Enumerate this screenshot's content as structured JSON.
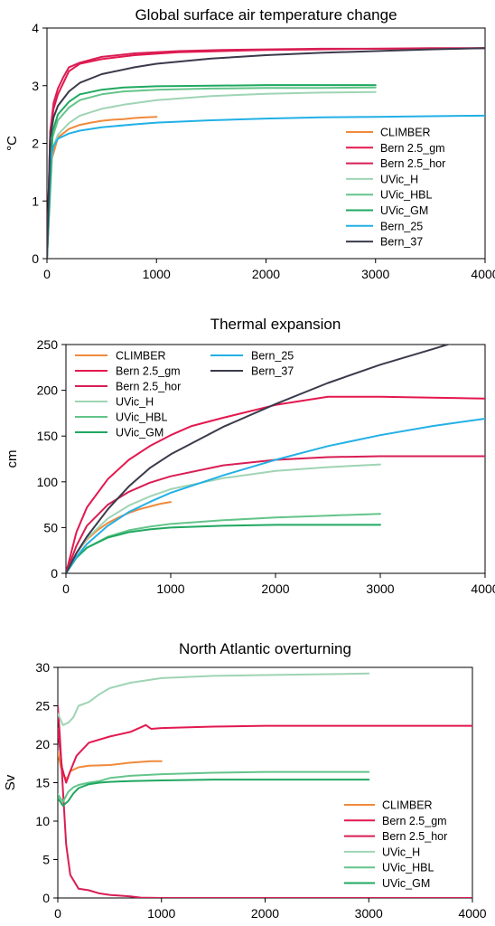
{
  "colors": {
    "CLIMBER": "#f08a3c",
    "Bern 2.5_gm": "#e3184f",
    "Bern 2.5_hor": "#d81e54",
    "UVic_H": "#9fd4b4",
    "UVic_HBL": "#64c48a",
    "UVic_GM": "#1fa860",
    "Bern_25": "#22b0e6",
    "Bern_37": "#3a3a4c"
  },
  "chart_data": [
    {
      "type": "line",
      "title": "Global surface air temperature change",
      "xlabel": "",
      "ylabel": "°C",
      "xlim": [
        0,
        4000
      ],
      "ylim": [
        0,
        4
      ],
      "xticks": [
        "0",
        "1000",
        "2000",
        "3000",
        "4000"
      ],
      "yticks": [
        "0",
        "1",
        "2",
        "3",
        "4"
      ],
      "legend_position": "lower-right",
      "legend": [
        "CLIMBER",
        "Bern 2.5_gm",
        "Bern 2.5_hor",
        "UVic_H",
        "UVic_HBL",
        "UVic_GM",
        "Bern_25",
        "Bern_37"
      ],
      "series": [
        {
          "name": "CLIMBER",
          "x": [
            0,
            40,
            100,
            200,
            300,
            400,
            500,
            600,
            700,
            800,
            900,
            1000
          ],
          "y": [
            0,
            1.7,
            2.1,
            2.25,
            2.32,
            2.36,
            2.39,
            2.41,
            2.42,
            2.44,
            2.45,
            2.46
          ]
        },
        {
          "name": "Bern 2.5_gm",
          "x": [
            0,
            30,
            60,
            100,
            150,
            200,
            300,
            500,
            800,
            1200,
            1600,
            2000,
            2500,
            3000,
            3500,
            4000
          ],
          "y": [
            0,
            2.2,
            2.6,
            2.85,
            3.05,
            3.25,
            3.38,
            3.46,
            3.53,
            3.58,
            3.6,
            3.62,
            3.63,
            3.64,
            3.64,
            3.65
          ]
        },
        {
          "name": "Bern 2.5_hor",
          "x": [
            0,
            30,
            60,
            100,
            150,
            200,
            300,
            500,
            800,
            1200,
            1600,
            2000,
            2500,
            3000,
            3500,
            4000
          ],
          "y": [
            0,
            2.2,
            2.7,
            2.95,
            3.15,
            3.32,
            3.4,
            3.5,
            3.56,
            3.6,
            3.62,
            3.63,
            3.64,
            3.64,
            3.65,
            3.65
          ]
        },
        {
          "name": "UVic_H",
          "x": [
            0,
            50,
            100,
            200,
            300,
            500,
            700,
            1000,
            1500,
            2000,
            2500,
            3000
          ],
          "y": [
            0,
            1.9,
            2.15,
            2.35,
            2.48,
            2.6,
            2.67,
            2.75,
            2.82,
            2.86,
            2.88,
            2.89
          ]
        },
        {
          "name": "UVic_HBL",
          "x": [
            0,
            50,
            100,
            200,
            300,
            500,
            700,
            1000,
            1500,
            2000,
            2500,
            3000
          ],
          "y": [
            0,
            2.1,
            2.4,
            2.62,
            2.75,
            2.85,
            2.9,
            2.93,
            2.95,
            2.96,
            2.96,
            2.97
          ]
        },
        {
          "name": "UVic_GM",
          "x": [
            0,
            50,
            100,
            200,
            300,
            500,
            700,
            1000,
            1500,
            2000,
            2500,
            3000
          ],
          "y": [
            0,
            2.2,
            2.5,
            2.72,
            2.85,
            2.93,
            2.97,
            2.99,
            3.0,
            3.01,
            3.01,
            3.01
          ]
        },
        {
          "name": "Bern_25",
          "x": [
            0,
            30,
            60,
            100,
            200,
            300,
            500,
            800,
            1000,
            1500,
            2000,
            2500,
            3000,
            3500,
            4000
          ],
          "y": [
            0,
            1.7,
            1.95,
            2.08,
            2.17,
            2.22,
            2.28,
            2.33,
            2.36,
            2.4,
            2.43,
            2.45,
            2.46,
            2.47,
            2.48
          ]
        },
        {
          "name": "Bern_37",
          "x": [
            0,
            30,
            60,
            100,
            200,
            300,
            500,
            800,
            1000,
            1500,
            2000,
            2500,
            3000,
            3500,
            4000
          ],
          "y": [
            0,
            2.1,
            2.45,
            2.65,
            2.9,
            3.05,
            3.2,
            3.32,
            3.38,
            3.47,
            3.53,
            3.57,
            3.6,
            3.63,
            3.65
          ]
        }
      ]
    },
    {
      "type": "line",
      "title": "Thermal expansion",
      "xlabel": "",
      "ylabel": "cm",
      "xlim": [
        0,
        4000
      ],
      "ylim": [
        0,
        250
      ],
      "xticks": [
        "0",
        "1000",
        "2000",
        "3000",
        "4000"
      ],
      "yticks": [
        "0",
        "50",
        "100",
        "150",
        "200",
        "250"
      ],
      "legend_position": "top-left",
      "legend": [
        "CLIMBER",
        "Bern 2.5_gm",
        "Bern 2.5_hor",
        "UVic_H",
        "UVic_HBL",
        "UVic_GM",
        "Bern_25",
        "Bern_37"
      ],
      "series": [
        {
          "name": "CLIMBER",
          "x": [
            0,
            100,
            200,
            300,
            400,
            500,
            600,
            700,
            800,
            900,
            1000
          ],
          "y": [
            0,
            22,
            37,
            47,
            55,
            61,
            66,
            70,
            73,
            76,
            78
          ]
        },
        {
          "name": "Bern 2.5_gm",
          "x": [
            0,
            100,
            200,
            400,
            600,
            800,
            1000,
            1200,
            1500,
            2000,
            2500,
            3000,
            3500,
            4000
          ],
          "y": [
            0,
            45,
            72,
            103,
            124,
            139,
            151,
            161,
            170,
            184,
            193,
            193,
            192,
            191
          ]
        },
        {
          "name": "Bern 2.5_hor",
          "x": [
            0,
            100,
            200,
            400,
            600,
            800,
            1000,
            1500,
            2000,
            2500,
            3000,
            3500,
            4000
          ],
          "y": [
            0,
            30,
            52,
            75,
            89,
            99,
            106,
            118,
            124,
            127,
            128,
            128,
            128
          ]
        },
        {
          "name": "UVic_H",
          "x": [
            0,
            100,
            200,
            400,
            600,
            800,
            1000,
            1500,
            2000,
            2500,
            3000
          ],
          "y": [
            0,
            22,
            38,
            60,
            74,
            84,
            92,
            104,
            112,
            116,
            119
          ]
        },
        {
          "name": "UVic_HBL",
          "x": [
            0,
            100,
            200,
            400,
            600,
            800,
            1000,
            1500,
            2000,
            2500,
            3000
          ],
          "y": [
            0,
            17,
            28,
            40,
            47,
            51,
            54,
            58,
            61,
            63,
            65
          ]
        },
        {
          "name": "UVic_GM",
          "x": [
            0,
            100,
            200,
            400,
            600,
            800,
            1000,
            1500,
            2000,
            2500,
            3000
          ],
          "y": [
            0,
            17,
            28,
            39,
            45,
            48,
            50,
            52,
            53,
            53,
            53
          ]
        },
        {
          "name": "Bern_25",
          "x": [
            0,
            100,
            200,
            400,
            600,
            800,
            1000,
            1500,
            2000,
            2500,
            3000,
            3500,
            4000
          ],
          "y": [
            0,
            18,
            32,
            52,
            67,
            78,
            88,
            107,
            124,
            139,
            151,
            161,
            169
          ]
        },
        {
          "name": "Bern_37",
          "x": [
            0,
            100,
            200,
            400,
            600,
            800,
            1000,
            1500,
            2000,
            2500,
            3000,
            3500,
            3700
          ],
          "y": [
            0,
            22,
            40,
            70,
            95,
            115,
            130,
            160,
            185,
            208,
            228,
            245,
            252
          ]
        }
      ]
    },
    {
      "type": "line",
      "title": "North Atlantic overturning",
      "xlabel": "",
      "ylabel": "Sv",
      "xlim": [
        0,
        4000
      ],
      "ylim": [
        0,
        30
      ],
      "xticks": [
        "0",
        "1000",
        "2000",
        "3000",
        "4000"
      ],
      "yticks": [
        "0",
        "5",
        "10",
        "15",
        "20",
        "25",
        "30"
      ],
      "legend_position": "lower-right",
      "legend": [
        "CLIMBER",
        "Bern 2.5_gm",
        "Bern 2.5_hor",
        "UVic_H",
        "UVic_HBL",
        "UVic_GM"
      ],
      "series": [
        {
          "name": "CLIMBER",
          "x": [
            0,
            30,
            60,
            90,
            120,
            200,
            300,
            500,
            700,
            900,
            1000
          ],
          "y": [
            19,
            17,
            15.8,
            15.5,
            16.5,
            17.0,
            17.2,
            17.3,
            17.6,
            17.8,
            17.8
          ]
        },
        {
          "name": "Bern 2.5_gm",
          "x": [
            0,
            40,
            80,
            120,
            180,
            300,
            500,
            700,
            850,
            900,
            1000,
            1500,
            2000,
            3000,
            4000
          ],
          "y": [
            22,
            17,
            15,
            16.5,
            18.5,
            20.2,
            21.0,
            21.6,
            22.5,
            22.0,
            22.1,
            22.3,
            22.4,
            22.4,
            22.4
          ]
        },
        {
          "name": "Bern 2.5_hor",
          "x": [
            0,
            20,
            50,
            80,
            120,
            200,
            300,
            400,
            500,
            700,
            800,
            1000,
            2000,
            3000,
            4000
          ],
          "y": [
            25,
            21,
            14,
            7,
            3,
            1.2,
            1.0,
            0.6,
            0.4,
            0.2,
            0.05,
            0,
            0,
            0,
            0
          ]
        },
        {
          "name": "UVic_H",
          "x": [
            0,
            50,
            100,
            150,
            200,
            300,
            400,
            500,
            700,
            1000,
            1500,
            2000,
            3000
          ],
          "y": [
            24,
            22.5,
            22.8,
            23.5,
            25,
            25.5,
            26.5,
            27.3,
            28.0,
            28.6,
            28.9,
            29.0,
            29.2
          ]
        },
        {
          "name": "UVic_HBL",
          "x": [
            0,
            50,
            100,
            150,
            200,
            300,
            400,
            500,
            700,
            1000,
            1500,
            2000,
            3000
          ],
          "y": [
            13.5,
            12.5,
            13.8,
            14.4,
            14.7,
            15.0,
            15.2,
            15.6,
            15.9,
            16.1,
            16.3,
            16.4,
            16.4
          ]
        },
        {
          "name": "UVic_GM",
          "x": [
            0,
            50,
            100,
            150,
            200,
            300,
            400,
            500,
            700,
            1000,
            1500,
            2000,
            3000
          ],
          "y": [
            13,
            12,
            12.6,
            13.6,
            14.3,
            14.8,
            15.0,
            15.1,
            15.2,
            15.3,
            15.4,
            15.4,
            15.4
          ]
        }
      ]
    }
  ]
}
